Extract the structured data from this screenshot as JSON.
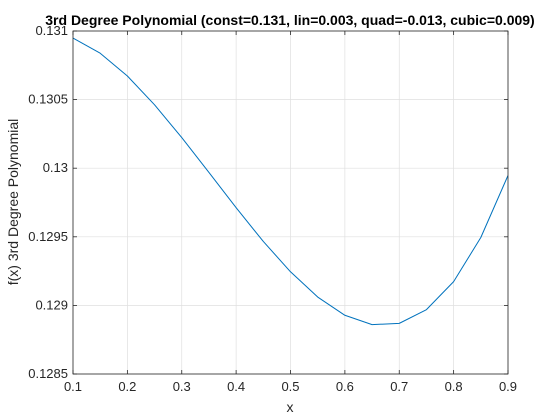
{
  "chart_data": {
    "type": "line",
    "title": "3rd Degree Polynomial (const=0.131, lin=0.003, quad=-0.013, cubic=0.009)",
    "xlabel": "x",
    "ylabel": "f(x) 3rd Degree Polynomial",
    "xlim": [
      0.1,
      0.9
    ],
    "ylim": [
      0.1285,
      0.131
    ],
    "x_ticks": [
      "0.1",
      "0.2",
      "0.3",
      "0.4",
      "0.5",
      "0.6",
      "0.7",
      "0.8",
      "0.9"
    ],
    "y_ticks": [
      "0.1285",
      "0.129",
      "0.1295",
      "0.13",
      "0.1305",
      "0.131"
    ],
    "grid": true,
    "series": [
      {
        "color": "#0072BD",
        "x": [
          0.1,
          0.15,
          0.2,
          0.25,
          0.3,
          0.35,
          0.4,
          0.45,
          0.5,
          0.55,
          0.6,
          0.65,
          0.7,
          0.75,
          0.8,
          0.85,
          0.9
        ],
        "y": [
          0.130949,
          0.130838,
          0.130672,
          0.130462,
          0.130223,
          0.129969,
          0.129712,
          0.129466,
          0.129245,
          0.129061,
          0.128928,
          0.12886,
          0.128869,
          0.128969,
          0.129173,
          0.129495,
          0.129947
        ]
      }
    ]
  }
}
